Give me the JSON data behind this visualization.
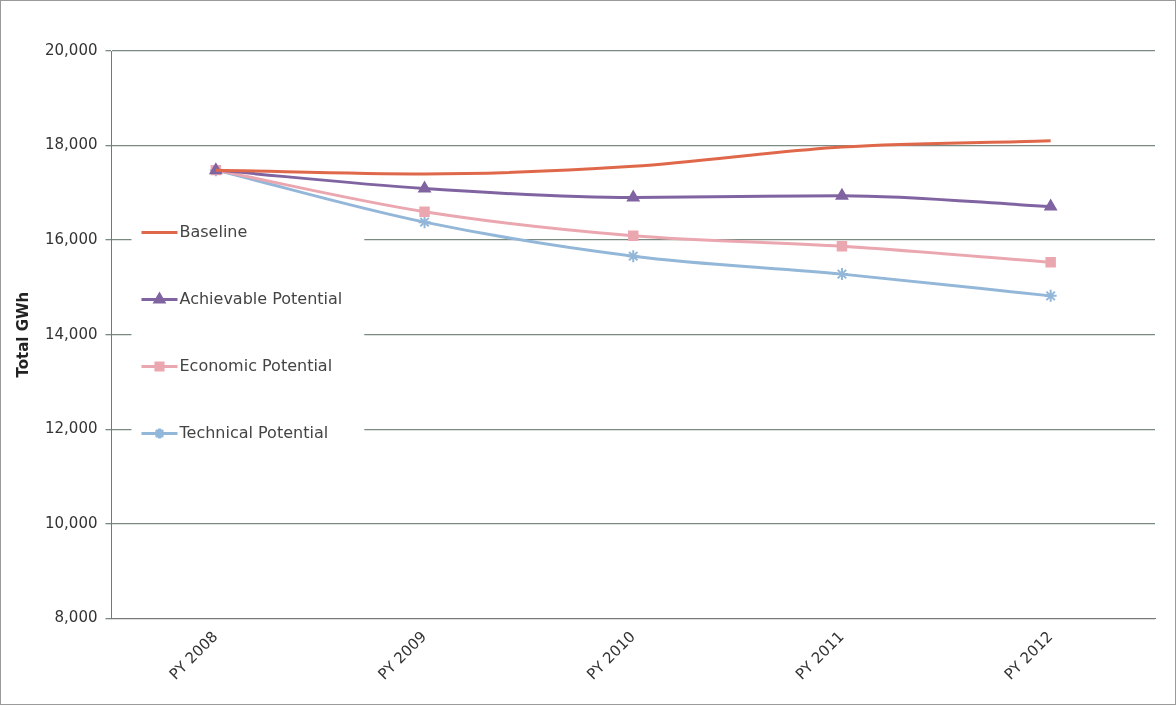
{
  "chart_data": {
    "type": "line",
    "ylabel": "Total GWh",
    "categories": [
      "PY 2008",
      "PY 2009",
      "PY 2010",
      "PY 2011",
      "PY 2012"
    ],
    "series": [
      {
        "name": "Baseline",
        "color": "#e0684a",
        "marker": "none",
        "values": [
          17480,
          17400,
          17560,
          17970,
          18100
        ]
      },
      {
        "name": "Achievable Potential",
        "color": "#8064a2",
        "marker": "triangle",
        "values": [
          17480,
          17090,
          16900,
          16940,
          16710
        ]
      },
      {
        "name": "Economic Potential",
        "color": "#eba7b0",
        "marker": "square",
        "values": [
          17480,
          16600,
          16090,
          15870,
          15530
        ]
      },
      {
        "name": "Technical Potential",
        "color": "#93b7d8",
        "marker": "cross",
        "values": [
          17480,
          16380,
          15660,
          15280,
          14820
        ]
      }
    ],
    "ylim": [
      8000,
      20000
    ],
    "yticks": [
      {
        "value": 8000,
        "label": "8,000"
      },
      {
        "value": 10000,
        "label": "10,000"
      },
      {
        "value": 12000,
        "label": "12,000"
      },
      {
        "value": 14000,
        "label": "14,000"
      },
      {
        "value": 16000,
        "label": "16,000"
      },
      {
        "value": 18000,
        "label": "18,000"
      },
      {
        "value": 20000,
        "label": "20,000"
      }
    ],
    "grid": "y",
    "legend": "left"
  }
}
